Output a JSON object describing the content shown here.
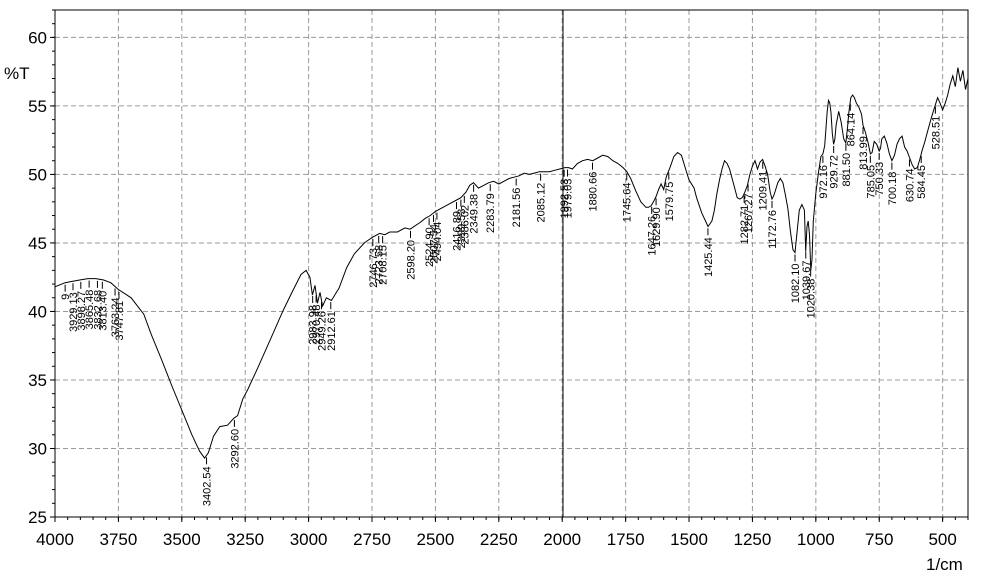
{
  "chart_data": {
    "type": "line",
    "xlabel": "1/cm",
    "ylabel": "%T",
    "xlim": [
      4000,
      400
    ],
    "ylim": [
      25,
      62
    ],
    "x_ticks": [
      4000,
      3750,
      3500,
      3250,
      3000,
      2750,
      2500,
      2250,
      2000,
      1750,
      1500,
      1250,
      1000,
      750,
      500
    ],
    "x_tick_labels": [
      "4000",
      "3750",
      "3500",
      "3250",
      "3000",
      "2750",
      "2500",
      "2250",
      "2000",
      "1750",
      "1500",
      "1250",
      "1000",
      "750",
      "500"
    ],
    "y_ticks": [
      25,
      30,
      35,
      40,
      45,
      50,
      55,
      60
    ],
    "y_tick_labels": [
      "25",
      "30",
      "35",
      "40",
      "45",
      "50",
      "55",
      "60"
    ],
    "grid": true,
    "series": [
      {
        "points": [
          [
            4000,
            41.8
          ],
          [
            3960,
            42.1
          ],
          [
            3930,
            42.2
          ],
          [
            3900,
            42.3
          ],
          [
            3870,
            42.4
          ],
          [
            3840,
            42.4
          ],
          [
            3810,
            42.3
          ],
          [
            3780,
            42.1
          ],
          [
            3750,
            41.6
          ],
          [
            3700,
            41.0
          ],
          [
            3650,
            39.8
          ],
          [
            3620,
            38.3
          ],
          [
            3580,
            36.5
          ],
          [
            3540,
            34.6
          ],
          [
            3500,
            32.8
          ],
          [
            3460,
            31.0
          ],
          [
            3430,
            29.8
          ],
          [
            3410,
            29.3
          ],
          [
            3395,
            29.7
          ],
          [
            3375,
            30.9
          ],
          [
            3350,
            31.6
          ],
          [
            3320,
            31.7
          ],
          [
            3295,
            32.2
          ],
          [
            3280,
            32.4
          ],
          [
            3260,
            33.6
          ],
          [
            3240,
            34.3
          ],
          [
            3200,
            35.9
          ],
          [
            3150,
            38.0
          ],
          [
            3100,
            40.1
          ],
          [
            3060,
            41.6
          ],
          [
            3030,
            42.7
          ],
          [
            3010,
            43.0
          ],
          [
            2995,
            42.5
          ],
          [
            2985,
            41.2
          ],
          [
            2975,
            41.9
          ],
          [
            2965,
            40.6
          ],
          [
            2955,
            41.4
          ],
          [
            2945,
            40.4
          ],
          [
            2930,
            41.0
          ],
          [
            2910,
            40.8
          ],
          [
            2880,
            41.7
          ],
          [
            2850,
            43.2
          ],
          [
            2820,
            44.2
          ],
          [
            2780,
            45.0
          ],
          [
            2750,
            45.4
          ],
          [
            2720,
            45.7
          ],
          [
            2700,
            45.6
          ],
          [
            2680,
            45.8
          ],
          [
            2650,
            45.8
          ],
          [
            2620,
            46.1
          ],
          [
            2600,
            46.0
          ],
          [
            2560,
            46.5
          ],
          [
            2540,
            46.8
          ],
          [
            2520,
            47.0
          ],
          [
            2500,
            47.3
          ],
          [
            2480,
            47.5
          ],
          [
            2460,
            47.7
          ],
          [
            2440,
            47.9
          ],
          [
            2420,
            48.1
          ],
          [
            2400,
            48.3
          ],
          [
            2380,
            48.7
          ],
          [
            2365,
            49.2
          ],
          [
            2350,
            49.4
          ],
          [
            2330,
            49.0
          ],
          [
            2310,
            49.2
          ],
          [
            2290,
            49.4
          ],
          [
            2270,
            49.5
          ],
          [
            2250,
            49.3
          ],
          [
            2230,
            49.5
          ],
          [
            2210,
            49.7
          ],
          [
            2190,
            49.8
          ],
          [
            2170,
            49.9
          ],
          [
            2150,
            50.1
          ],
          [
            2130,
            50.0
          ],
          [
            2110,
            50.1
          ],
          [
            2090,
            50.2
          ],
          [
            2070,
            50.2
          ],
          [
            2050,
            50.2
          ],
          [
            2030,
            50.3
          ],
          [
            2010,
            50.4
          ],
          [
            1990,
            50.5
          ],
          [
            1975,
            50.5
          ],
          [
            1960,
            50.4
          ],
          [
            1940,
            50.8
          ],
          [
            1920,
            51.0
          ],
          [
            1900,
            51.1
          ],
          [
            1880,
            51.0
          ],
          [
            1860,
            51.2
          ],
          [
            1840,
            51.4
          ],
          [
            1820,
            51.3
          ],
          [
            1800,
            51.0
          ],
          [
            1780,
            50.8
          ],
          [
            1760,
            50.5
          ],
          [
            1745,
            50.2
          ],
          [
            1730,
            49.7
          ],
          [
            1710,
            48.8
          ],
          [
            1690,
            48.0
          ],
          [
            1670,
            47.6
          ],
          [
            1660,
            47.6
          ],
          [
            1650,
            47.7
          ],
          [
            1640,
            48.0
          ],
          [
            1630,
            48.4
          ],
          [
            1620,
            48.9
          ],
          [
            1610,
            49.3
          ],
          [
            1600,
            48.9
          ],
          [
            1590,
            49.8
          ],
          [
            1575,
            50.5
          ],
          [
            1560,
            51.3
          ],
          [
            1545,
            51.6
          ],
          [
            1530,
            51.4
          ],
          [
            1515,
            50.5
          ],
          [
            1500,
            49.6
          ],
          [
            1480,
            49.0
          ],
          [
            1470,
            48.3
          ],
          [
            1450,
            47.2
          ],
          [
            1435,
            46.6
          ],
          [
            1425,
            46.2
          ],
          [
            1410,
            46.6
          ],
          [
            1400,
            47.4
          ],
          [
            1390,
            48.6
          ],
          [
            1380,
            49.6
          ],
          [
            1370,
            50.4
          ],
          [
            1360,
            51.0
          ],
          [
            1350,
            50.8
          ],
          [
            1340,
            50.4
          ],
          [
            1330,
            49.7
          ],
          [
            1320,
            49.0
          ],
          [
            1310,
            48.3
          ],
          [
            1300,
            48.2
          ],
          [
            1290,
            48.3
          ],
          [
            1280,
            48.7
          ],
          [
            1270,
            49.2
          ],
          [
            1260,
            50.0
          ],
          [
            1250,
            50.6
          ],
          [
            1240,
            51.0
          ],
          [
            1230,
            50.4
          ],
          [
            1220,
            50.9
          ],
          [
            1210,
            51.1
          ],
          [
            1200,
            50.6
          ],
          [
            1190,
            50.0
          ],
          [
            1180,
            48.7
          ],
          [
            1173,
            48.2
          ],
          [
            1165,
            48.5
          ],
          [
            1150,
            49.4
          ],
          [
            1140,
            49.7
          ],
          [
            1130,
            49.4
          ],
          [
            1120,
            48.5
          ],
          [
            1110,
            47.5
          ],
          [
            1100,
            45.8
          ],
          [
            1090,
            44.5
          ],
          [
            1082,
            44.3
          ],
          [
            1075,
            45.6
          ],
          [
            1065,
            47.4
          ],
          [
            1055,
            47.8
          ],
          [
            1045,
            47.4
          ],
          [
            1040,
            44.4
          ],
          [
            1035,
            46.2
          ],
          [
            1030,
            46.6
          ],
          [
            1025,
            45.6
          ],
          [
            1020,
            43.0
          ],
          [
            1015,
            43.8
          ],
          [
            1010,
            46.6
          ],
          [
            1000,
            48.6
          ],
          [
            990,
            50.1
          ],
          [
            980,
            51.3
          ],
          [
            972,
            51.5
          ],
          [
            965,
            52.1
          ],
          [
            960,
            53.4
          ],
          [
            955,
            54.6
          ],
          [
            950,
            55.4
          ],
          [
            945,
            55.2
          ],
          [
            940,
            54.5
          ],
          [
            935,
            53.0
          ],
          [
            930,
            52.2
          ],
          [
            925,
            52.6
          ],
          [
            920,
            53.6
          ],
          [
            910,
            54.6
          ],
          [
            900,
            53.8
          ],
          [
            890,
            52.6
          ],
          [
            882,
            52.3
          ],
          [
            875,
            53.4
          ],
          [
            870,
            54.5
          ],
          [
            862,
            55.6
          ],
          [
            855,
            55.8
          ],
          [
            848,
            55.6
          ],
          [
            840,
            55.2
          ],
          [
            830,
            54.9
          ],
          [
            820,
            54.4
          ],
          [
            814,
            53.6
          ],
          [
            805,
            53.1
          ],
          [
            795,
            52.4
          ],
          [
            785,
            51.5
          ],
          [
            778,
            51.6
          ],
          [
            770,
            52.4
          ],
          [
            760,
            52.2
          ],
          [
            750,
            51.7
          ],
          [
            745,
            51.9
          ],
          [
            740,
            52.6
          ],
          [
            730,
            52.8
          ],
          [
            720,
            52.3
          ],
          [
            710,
            51.5
          ],
          [
            700,
            51.0
          ],
          [
            690,
            51.4
          ],
          [
            680,
            52.2
          ],
          [
            670,
            52.6
          ],
          [
            660,
            52.8
          ],
          [
            650,
            52.0
          ],
          [
            640,
            51.7
          ],
          [
            630,
            51.2
          ],
          [
            620,
            50.7
          ],
          [
            610,
            50.4
          ],
          [
            600,
            50.5
          ],
          [
            590,
            51.1
          ],
          [
            580,
            51.8
          ],
          [
            570,
            52.4
          ],
          [
            560,
            53.1
          ],
          [
            545,
            54.1
          ],
          [
            530,
            55.0
          ],
          [
            520,
            55.6
          ],
          [
            510,
            55.2
          ],
          [
            500,
            54.7
          ],
          [
            490,
            55.2
          ],
          [
            480,
            55.8
          ],
          [
            470,
            56.6
          ],
          [
            460,
            57.2
          ],
          [
            450,
            56.4
          ],
          [
            440,
            57.8
          ],
          [
            430,
            56.8
          ],
          [
            420,
            57.6
          ],
          [
            410,
            56.2
          ],
          [
            400,
            57.0
          ]
        ]
      }
    ],
    "peak_labels": [
      {
        "x": 3960,
        "label": "9"
      },
      {
        "x": 3929.13,
        "label": "3929.13"
      },
      {
        "x": 3898.27,
        "label": "3898.27"
      },
      {
        "x": 3865.48,
        "label": "3865.48"
      },
      {
        "x": 3832.68,
        "label": "3832.68"
      },
      {
        "x": 3813.4,
        "label": "3813.40"
      },
      {
        "x": 3763.24,
        "label": "3763.24"
      },
      {
        "x": 3747.81,
        "label": "3747.81"
      },
      {
        "x": 3402.54,
        "label": "3402.54"
      },
      {
        "x": 3292.6,
        "label": "3292.60"
      },
      {
        "x": 2983.98,
        "label": "2983.98"
      },
      {
        "x": 2970.48,
        "label": "2970.48"
      },
      {
        "x": 2949.26,
        "label": "2949.26"
      },
      {
        "x": 2912.61,
        "label": "2912.61"
      },
      {
        "x": 2746.73,
        "label": "2746.73"
      },
      {
        "x": 2723.58,
        "label": "2723.58"
      },
      {
        "x": 2708.15,
        "label": "2708.15"
      },
      {
        "x": 2598.2,
        "label": "2598.20"
      },
      {
        "x": 2524.9,
        "label": "2524.90"
      },
      {
        "x": 2507.54,
        "label": "2507.54"
      },
      {
        "x": 2494.04,
        "label": "2494.04"
      },
      {
        "x": 2416.89,
        "label": "2416.89"
      },
      {
        "x": 2399.53,
        "label": "2399.53"
      },
      {
        "x": 2386.02,
        "label": "2386.02"
      },
      {
        "x": 2349.38,
        "label": "2349.38"
      },
      {
        "x": 2283.79,
        "label": "2283.79"
      },
      {
        "x": 2181.56,
        "label": "2181.56"
      },
      {
        "x": 2085.12,
        "label": "2085.12"
      },
      {
        "x": 1992.53,
        "label": "1992.53"
      },
      {
        "x": 1979.03,
        "label": "1979.03"
      },
      {
        "x": 1880.66,
        "label": "1880.66"
      },
      {
        "x": 1745.64,
        "label": "1745.64"
      },
      {
        "x": 1647.26,
        "label": "1647.26"
      },
      {
        "x": 1629.9,
        "label": "1629.90"
      },
      {
        "x": 1579.75,
        "label": "1579.75"
      },
      {
        "x": 1425.44,
        "label": "1425.44"
      },
      {
        "x": 1282.71,
        "label": "1282.71"
      },
      {
        "x": 1267.27,
        "label": "1267.27"
      },
      {
        "x": 1209.41,
        "label": "1209.41"
      },
      {
        "x": 1172.76,
        "label": "1172.76"
      },
      {
        "x": 1082.1,
        "label": "1082.10"
      },
      {
        "x": 1039.67,
        "label": "1039.67"
      },
      {
        "x": 1020.38,
        "label": "1020.38"
      },
      {
        "x": 972.16,
        "label": "972.16"
      },
      {
        "x": 929.72,
        "label": "929.72"
      },
      {
        "x": 881.5,
        "label": "881.50"
      },
      {
        "x": 864.14,
        "label": "864.14"
      },
      {
        "x": 813.99,
        "label": "813.99"
      },
      {
        "x": 785.05,
        "label": "785.05"
      },
      {
        "x": 750.33,
        "label": "750.33"
      },
      {
        "x": 700.18,
        "label": "700.18"
      },
      {
        "x": 630.74,
        "label": "630.74"
      },
      {
        "x": 584.45,
        "label": "584.45"
      },
      {
        "x": 528.51,
        "label": "528.51"
      }
    ]
  }
}
